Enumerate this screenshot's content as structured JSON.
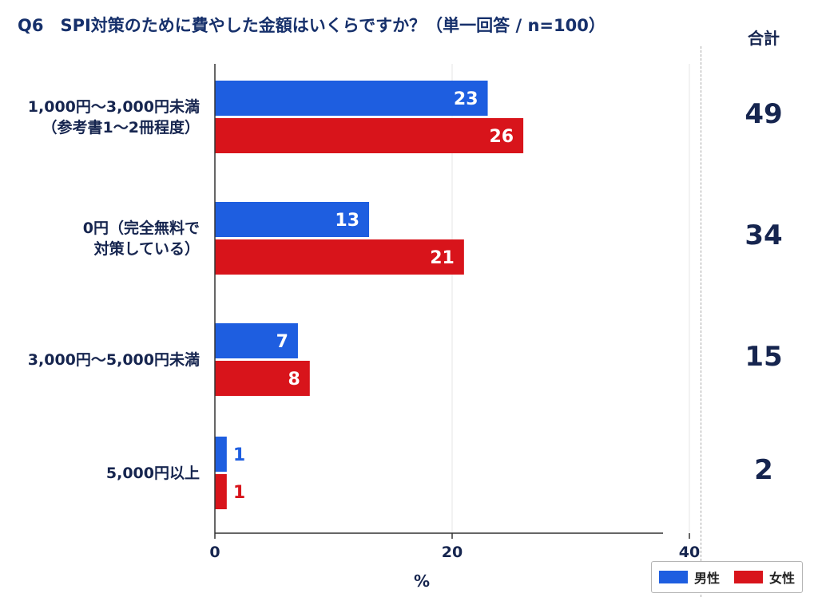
{
  "title": "Q6　SPI対策のために費やした金額はいくらですか？（単一回答 / n=100）",
  "totals_header": "合計",
  "chart_data": {
    "type": "bar",
    "orientation": "horizontal",
    "categories": [
      [
        "1,000円～3,000円未満",
        "（参考書1～2冊程度）"
      ],
      [
        "0円（完全無料で",
        "対策している）"
      ],
      [
        "3,000円～5,000円未満"
      ],
      [
        "5,000円以上"
      ]
    ],
    "series": [
      {
        "name": "男性",
        "color": "#1e5ee0",
        "values": [
          23,
          13,
          7,
          1
        ]
      },
      {
        "name": "女性",
        "color": "#d8141b",
        "values": [
          26,
          21,
          8,
          1
        ]
      }
    ],
    "totals": [
      49,
      34,
      15,
      2
    ],
    "xlabel": "%",
    "xticks": [
      0,
      20,
      40
    ],
    "legend_position": "bottom-right",
    "grid": "vertical"
  }
}
